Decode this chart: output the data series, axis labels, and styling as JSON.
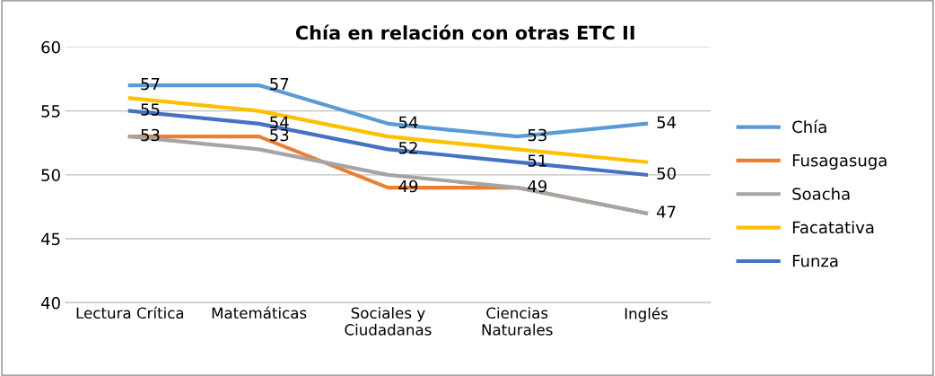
{
  "chart_data": {
    "type": "line",
    "title": "Chía en relación con otras ETC II",
    "categories": [
      "Lectura Crítica",
      "Matemáticas",
      "Sociales y\nCiudadanas",
      "Ciencias\nNaturales",
      "Inglés"
    ],
    "series": [
      {
        "name": "Chía",
        "color": "#5b9bd5",
        "values": [
          57,
          57,
          54,
          53,
          54
        ],
        "value_labels": [
          "57",
          "57",
          "54",
          "53",
          "54"
        ]
      },
      {
        "name": "Fusagasuga",
        "color": "#ed7d31",
        "values": [
          53,
          53,
          49,
          49,
          47
        ],
        "value_labels": [
          "53",
          "53",
          "49",
          "49",
          "47"
        ]
      },
      {
        "name": "Soacha",
        "color": "#a5a5a5",
        "values": [
          53,
          52,
          50,
          49,
          47
        ]
      },
      {
        "name": "Facatativa",
        "color": "#ffc000",
        "values": [
          56,
          55,
          53,
          52,
          51
        ]
      },
      {
        "name": "Funza",
        "color": "#4472c4",
        "values": [
          55,
          54,
          52,
          51,
          50
        ],
        "value_labels": [
          "55",
          "54",
          "52",
          "51",
          "50"
        ]
      }
    ],
    "ylim": [
      40,
      60
    ],
    "yticks": [
      40,
      45,
      50,
      55,
      60
    ],
    "grid": "y",
    "legend": "right",
    "marker": "none",
    "line_style": "solid"
  }
}
